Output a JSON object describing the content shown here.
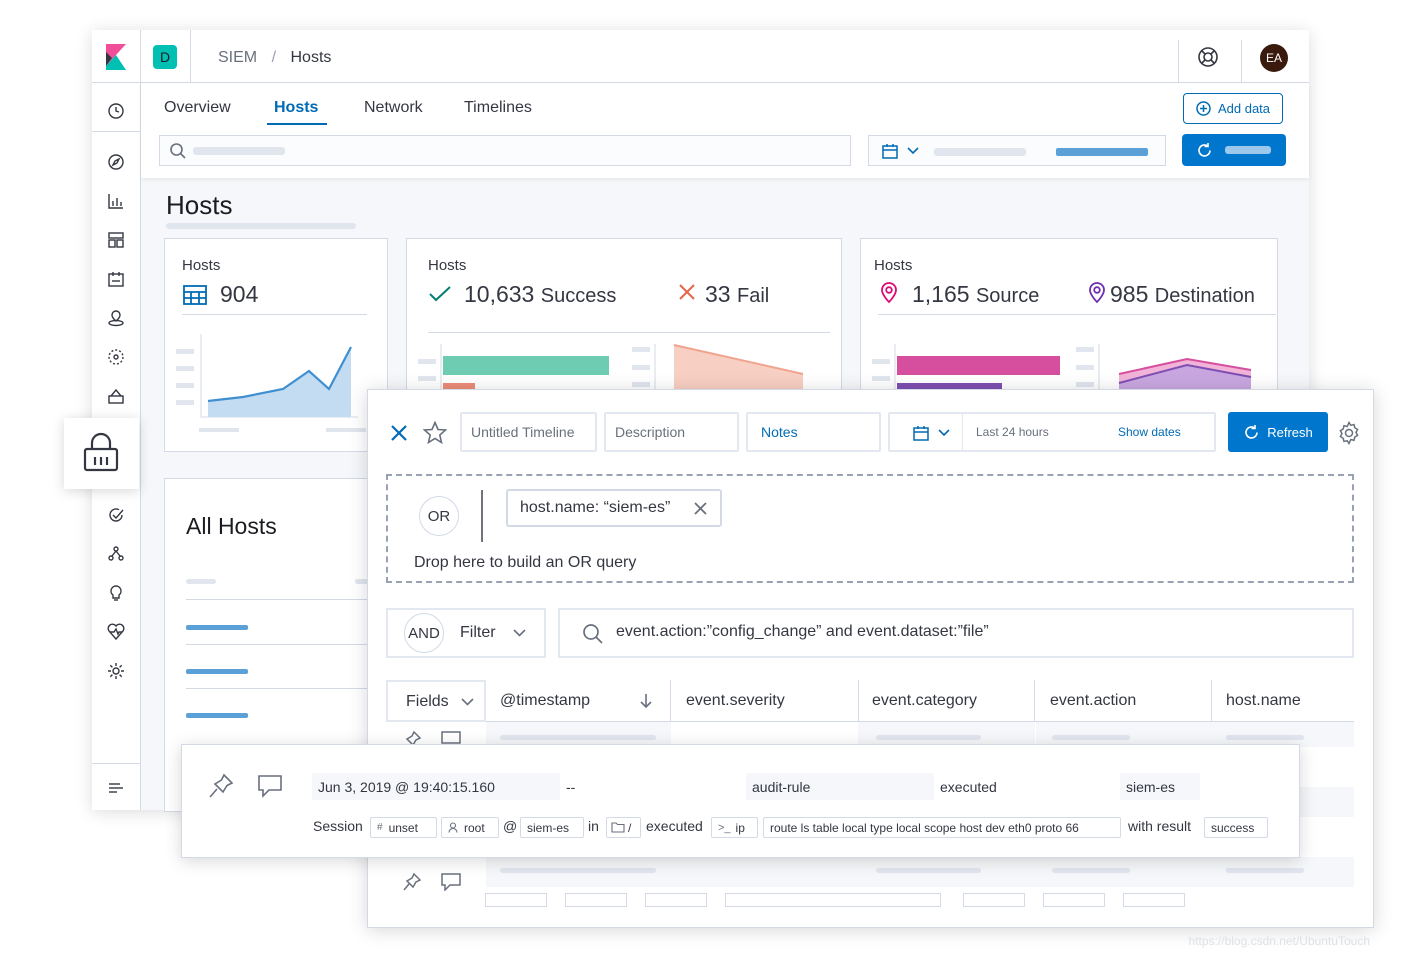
{
  "header": {
    "space_initial": "D",
    "breadcrumb": [
      "SIEM",
      "Hosts"
    ],
    "breadcrumb_separator": "/",
    "user_initials": "EA"
  },
  "tabs": [
    {
      "label": "Overview",
      "active": false
    },
    {
      "label": "Hosts",
      "active": true
    },
    {
      "label": "Network",
      "active": false
    },
    {
      "label": "Timelines",
      "active": false
    }
  ],
  "add_data_label": "Add data",
  "page_title": "Hosts",
  "stats": {
    "hosts": {
      "title": "Hosts",
      "value": "904"
    },
    "auth": {
      "title": "Hosts",
      "success_value": "10,633",
      "success_label": "Success",
      "fail_value": "33",
      "fail_label": "Fail"
    },
    "ips": {
      "title": "Hosts",
      "source_value": "1,165",
      "source_label": "Source",
      "dest_value": "985",
      "dest_label": "Destination"
    }
  },
  "all_hosts_title": "All Hosts",
  "timeline": {
    "title_placeholder": "Untitled Timeline",
    "description_placeholder": "Description",
    "notes_label": "Notes",
    "date_range": "Last 24 hours",
    "show_dates": "Show dates",
    "refresh_label": "Refresh",
    "or_label": "OR",
    "filter_pill": "host.name: “siem-es”",
    "drop_hint": "Drop here to build an OR query",
    "and_label": "AND",
    "filter_label": "Filter",
    "query": "event.action:”config_change” and event.dataset:”file”",
    "fields_label": "Fields",
    "columns": [
      "@timestamp",
      "event.severity",
      "event.category",
      "event.action",
      "host.name"
    ]
  },
  "event": {
    "timestamp": "Jun 3, 2019 @ 19:40:15.160",
    "severity": "--",
    "category": "audit-rule",
    "action": "executed",
    "host": "siem-es",
    "summary": {
      "session_label": "Session",
      "session_id": "unset",
      "user": "root",
      "at": "@",
      "host": "siem-es",
      "in": "in",
      "dir": "/",
      "executed": "executed",
      "process": "ip",
      "args": "route ls table local type local scope host dev eth0 proto 66",
      "with_result": "with result",
      "result": "success"
    }
  },
  "colors": {
    "accent": "#006bb4",
    "refresh_button": "#0077cc",
    "success": "#017d73",
    "fail": "#e7664c",
    "source_icon": "#dd0a73",
    "dest_icon": "#6f2fb2",
    "avatar": "#3b1a0e",
    "space_badge": "#00bfb3"
  },
  "watermark": "https://blog.csdn.net/UbuntuTouch"
}
